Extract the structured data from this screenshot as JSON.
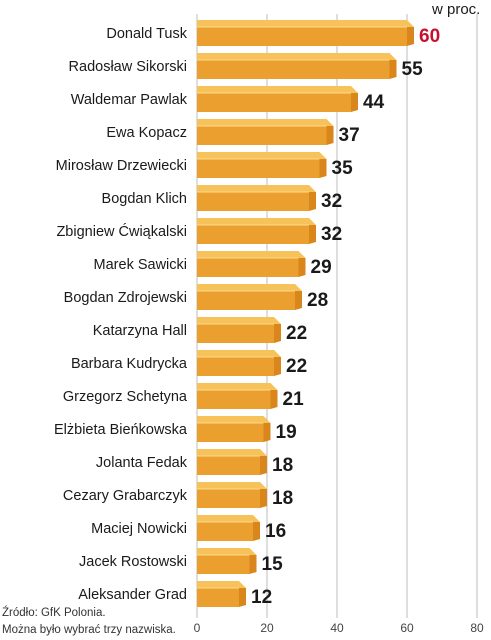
{
  "chart_data": {
    "type": "bar",
    "orientation": "horizontal",
    "unit_label": "w proc.",
    "categories": [
      "Donald Tusk",
      "Radosław Sikorski",
      "Waldemar Pawlak",
      "Ewa Kopacz",
      "Mirosław Drzewiecki",
      "Bogdan Klich",
      "Zbigniew Ćwiąkalski",
      "Marek Sawicki",
      "Bogdan Zdrojewski",
      "Katarzyna Hall",
      "Barbara Kudrycka",
      "Grzegorz Schetyna",
      "Elżbieta Bieńkowska",
      "Jolanta Fedak",
      "Cezary Grabarczyk",
      "Maciej Nowicki",
      "Jacek Rostowski",
      "Aleksander Grad"
    ],
    "values": [
      60,
      55,
      44,
      37,
      35,
      32,
      32,
      29,
      28,
      22,
      22,
      21,
      19,
      18,
      18,
      16,
      15,
      12
    ],
    "xlim": [
      0,
      80
    ],
    "xticks": [
      0,
      20,
      40,
      60,
      80
    ],
    "grid": true,
    "colors": {
      "bar_top": "#f7c25a",
      "bar_front": "#eb9f2e",
      "bar_end": "#d9861c",
      "grid": "#bdbdbd",
      "value_text": "#1a1a1a",
      "highlight_value_text": "#c8102e"
    },
    "highlight_index": 0
  },
  "source": {
    "line1": "Źródło: GfK Polonia.",
    "line2": "Można było wybrać trzy nazwiska."
  }
}
